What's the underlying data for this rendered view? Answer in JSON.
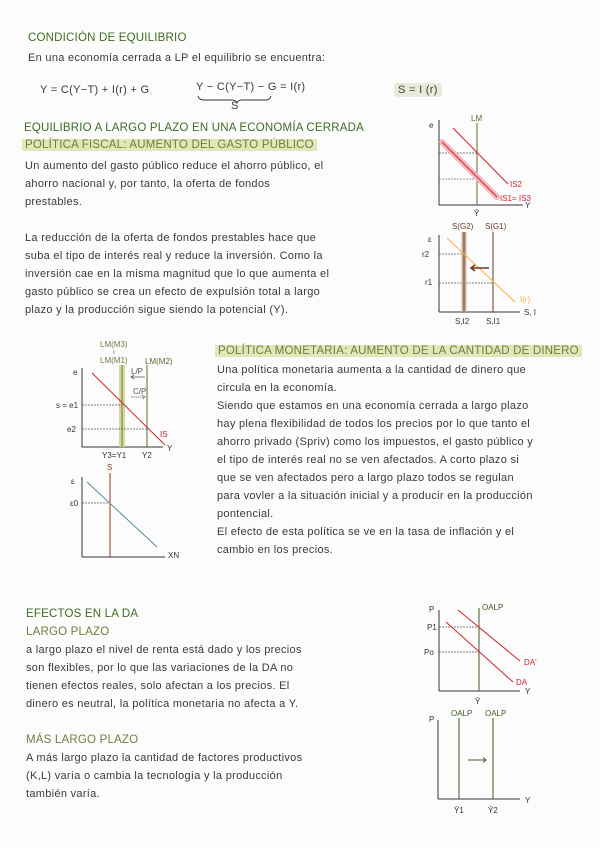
{
  "equilibrium": {
    "heading": "CONDICIÓN DE  EQUILIBRIO",
    "intro": "En una economía cerrada a LP el equilibrio se encuentra:",
    "eq1": "Y = C(Y−T) + I(r) + G",
    "eq2": "Y − C(Y−T) − G = I(r)",
    "eq2_brace_label": "S",
    "eq3": "S = I (r)"
  },
  "long_run": {
    "heading": "EQUILIBRIO A LARGO PLAZO EN UNA ECONOMÍA CERRADA",
    "fiscal_heading": "POLÍTICA FISCAL: AUMENTO DEL GASTO PÚBLICO",
    "fiscal_p1": [
      "Un aumento del gasto público reduce el ahorro público, el",
      "ahorro nacional y, por tanto, la oferta de fondos",
      "prestables."
    ],
    "fiscal_p2": [
      "La reducción de la oferta de fondos prestables hace que",
      "suba el tipo de interés real y reduce la inversión. Como la",
      "inversión cae en la misma magnitud que lo que aumenta el",
      "gasto público se crea un efecto de expulsión total a largo",
      "plazo y la producción sigue siendo la potencial (Y)."
    ],
    "monetary_heading": "POLÍTICA MONETARIA: AUMENTO DE LA CANTIDAD DE DINERO",
    "monetary_p": [
      "Una política monetaria aumenta a la cantidad de dinero que",
      "circula en la economía.",
      "Siendo que estamos en una economía cerrada a largo plazo",
      "hay plena flexibilidad de todos los precios por lo que tanto el",
      "ahorro privado (Spriv) como los impuestos, el gasto público y",
      "el tipo de interés real no se ven afectados. A corto plazo si",
      "que se ven afectados pero a largo plazo todos se regulan",
      "para vovler a la situación inicial y a producir en la producción",
      "pontencial.",
      "El efecto de esta política se ve en la tasa de inflación y el",
      "cambio en los precios."
    ]
  },
  "da_effects": {
    "heading": "EFECTOS EN LA DA",
    "lp_heading": "LARGO PLAZO",
    "lp_p": [
      "a largo plazo el nivel de renta está dado y los precios",
      "son flexibles, por lo que las variaciones de la DA no",
      "tienen efectos reales, solo afectan a los precios. El",
      "dinero es neutral, la política monetaria no afecta a Y."
    ],
    "mlp_heading": "MÁS LARGO PLAZO",
    "mlp_p": [
      "A más largo plazo la cantidad de factores productivos",
      "(K,L) varía o cambia la tecnología y la producción",
      "también varía."
    ]
  },
  "diagrams": {
    "is_lm_fiscal": {
      "y_axis": "e",
      "x_axis": "Y",
      "lm": "LM",
      "is2": "IS2",
      "is1": "IS1= IS3",
      "y_bar": "Ȳ"
    },
    "loanable_funds": {
      "y_axis": "ε",
      "x_axis": "S, I",
      "s_g2": "S(G2)",
      "s_g1": "S(G1)",
      "investment": "I(r)",
      "r2": "r2",
      "r1": "r1",
      "si2": "S,I2",
      "si1": "S,I1"
    },
    "is_lm_monetary": {
      "lm_m3": "LM(M3)",
      "lm_m1": "LM(M1)",
      "lm_m2": "LM(M2)",
      "y_axis": "e",
      "s_e1": "s = e1",
      "e2": "e2",
      "is": "IS",
      "x_axis": "Y",
      "y3_y1": "Y3=Y1",
      "y2": "Y2",
      "lp": "L/P",
      "cp": "C/P"
    },
    "net_exports": {
      "y_axis": "ε",
      "eps0": "ε0",
      "s": "S",
      "x_axis": "XN"
    },
    "da_long_run": {
      "y_axis": "P",
      "p1": "P1",
      "p0": "Po",
      "oalp": "OALP",
      "da_prime": "DA'",
      "da": "DA",
      "x_axis": "Y",
      "y_bar": "Ȳ"
    },
    "da_longer_run": {
      "y_axis": "P",
      "oalp1": "OALP",
      "oalp2": "OALP",
      "x_axis": "Y",
      "y1": "Ȳ1",
      "y2": "Ȳ2"
    }
  },
  "colors": {
    "heading_green": "#3f6a24",
    "highlight": "#e3e6b9",
    "red": "#d2232a",
    "orange": "#f4b23e",
    "brown": "#6b3a22",
    "olive": "#5b6b2a",
    "teal": "#5b8a96"
  }
}
